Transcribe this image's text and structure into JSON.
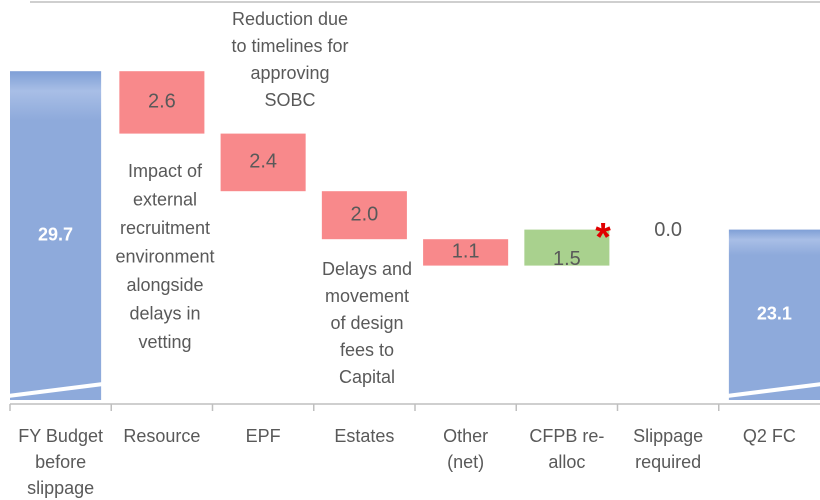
{
  "chart_data": {
    "type": "waterfall",
    "categories": [
      "FY Budget before slippage",
      "Resource",
      "EPF",
      "Estates",
      "Other (net)",
      "CFPB re-alloc",
      "Slippage required",
      "Q2 FC"
    ],
    "values": [
      29.7,
      -2.6,
      -2.4,
      -2.0,
      -1.1,
      1.5,
      0.0,
      23.1
    ],
    "value_labels": [
      "29.7",
      "2.6",
      "2.4",
      "2.0",
      "1.1",
      "1.5",
      "0.0",
      "23.1"
    ],
    "totals": [
      0,
      7
    ],
    "colors": {
      "total": "#8eaadb",
      "decrease": "#f8898b",
      "increase": "#a9d18e"
    },
    "ylim": [
      16,
      32
    ],
    "annotations": [
      {
        "lines": [
          "Reduction due",
          "to timelines for",
          "approving",
          "SOBC"
        ]
      },
      {
        "lines": [
          "Impact of",
          "external",
          "recruitment",
          "environment",
          "alongside",
          "delays in",
          "vetting"
        ]
      },
      {
        "lines": [
          "Delays and",
          "movement",
          "of design",
          "fees to",
          "Capital"
        ]
      },
      {
        "lines": [
          "*"
        ]
      }
    ]
  }
}
